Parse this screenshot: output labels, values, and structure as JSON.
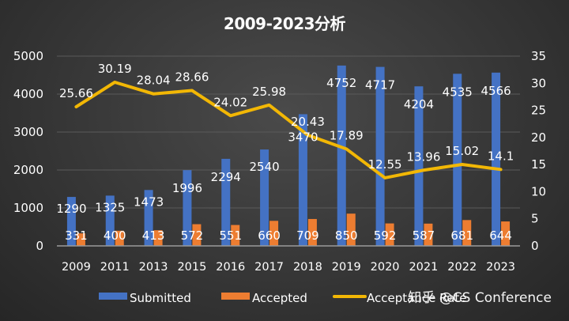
{
  "chart_data": {
    "type": "bar",
    "title": "2009-2023分析",
    "categories": [
      "2009",
      "2011",
      "2013",
      "2015",
      "2016",
      "2017",
      "2018",
      "2019",
      "2020",
      "2021",
      "2022",
      "2023"
    ],
    "series": [
      {
        "name": "Submitted",
        "type": "bar",
        "axis": "left",
        "color": "#4472c4",
        "values": [
          1290,
          1325,
          1473,
          1996,
          2294,
          2540,
          3470,
          4752,
          4717,
          4204,
          4535,
          4566
        ]
      },
      {
        "name": "Accepted",
        "type": "bar",
        "axis": "left",
        "color": "#ed7d31",
        "values": [
          331,
          400,
          413,
          572,
          551,
          660,
          709,
          850,
          592,
          587,
          681,
          644
        ]
      },
      {
        "name": "Acceptance Rate",
        "type": "line",
        "axis": "right",
        "color": "#f2b705",
        "values": [
          25.66,
          30.19,
          28.04,
          28.66,
          24.02,
          25.98,
          20.43,
          17.89,
          12.55,
          13.96,
          15.02,
          14.1
        ]
      }
    ],
    "y_left": {
      "ticks": [
        0,
        1000,
        2000,
        3000,
        4000,
        5000
      ],
      "ylim": [
        0,
        5000
      ]
    },
    "y_right": {
      "ticks": [
        0,
        5,
        10,
        15,
        20,
        25,
        30,
        35
      ],
      "ylim": [
        0,
        35
      ]
    },
    "xlabel": "",
    "ylabel": "",
    "grid": true,
    "legend_position": "bottom"
  },
  "watermark": "知乎 @CS Conference"
}
